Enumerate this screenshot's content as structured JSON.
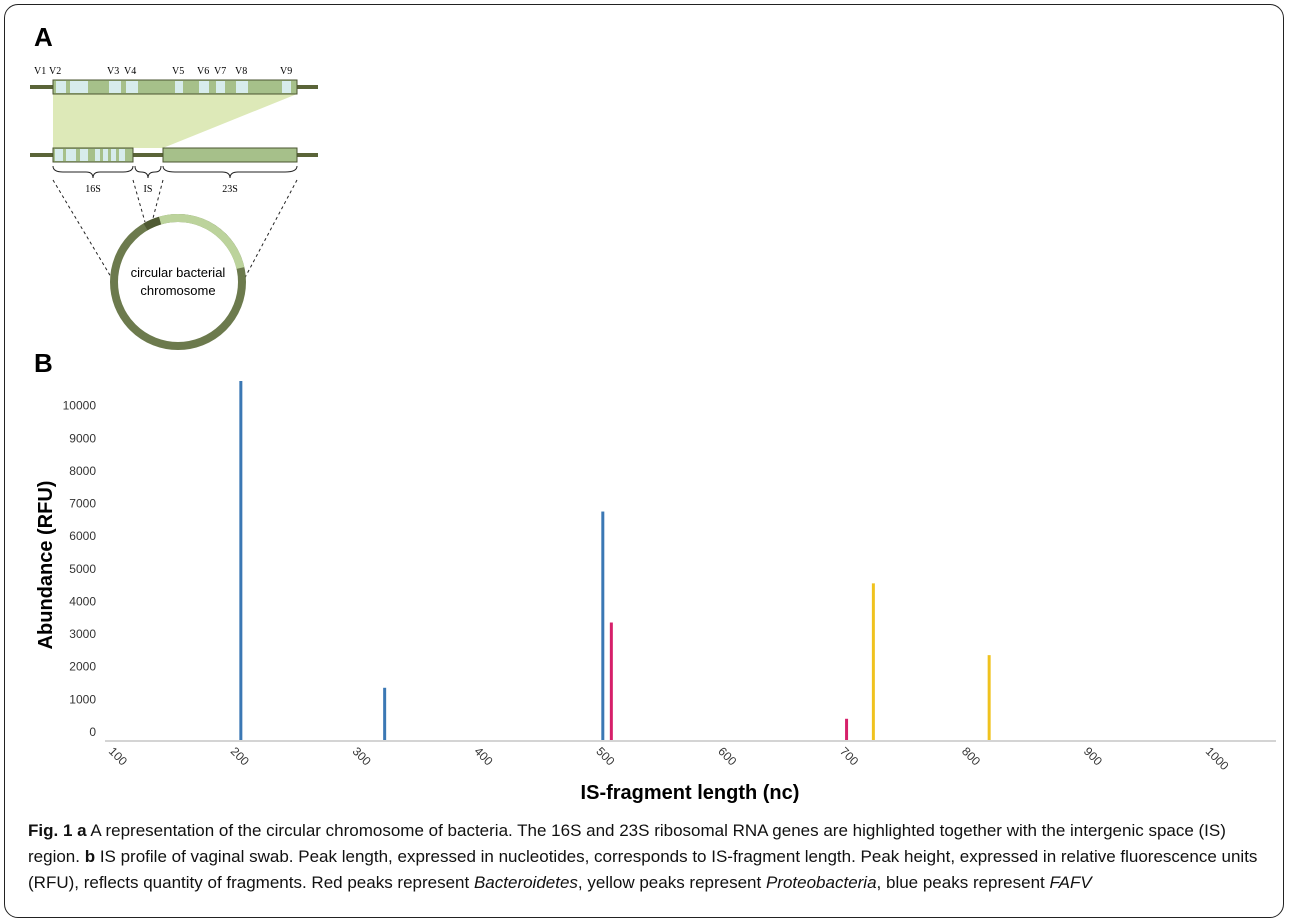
{
  "panel_a": {
    "label": "A",
    "region_labels": [
      "V1",
      "V2",
      "V3",
      "V4",
      "V5",
      "V6",
      "V7",
      "V8",
      "V9"
    ],
    "gene_labels": [
      "16S",
      "IS",
      "23S"
    ],
    "chromosome_label": [
      "circular bacterial",
      "chromosome"
    ]
  },
  "chart_data": {
    "type": "bar",
    "panel_label": "B",
    "xlabel": "IS-fragment length (nc)",
    "ylabel": "Abundance (RFU)",
    "series": [
      {
        "color": "#3b78b4",
        "x": [
          209,
          327,
          506
        ],
        "values": [
          11000,
          1600,
          7000
        ]
      },
      {
        "color": "#d6206a",
        "x": [
          513,
          706
        ],
        "values": [
          3600,
          650
        ]
      },
      {
        "color": "#f0c21e",
        "x": [
          728,
          823
        ],
        "values": [
          4800,
          2600
        ]
      }
    ],
    "xlim": [
      100,
      1060
    ],
    "ylim": [
      0,
      11000
    ],
    "xticks": [
      100,
      200,
      300,
      400,
      500,
      600,
      700,
      800,
      900,
      1000
    ],
    "yticks": [
      0,
      1000,
      2000,
      3000,
      4000,
      5000,
      6000,
      7000,
      8000,
      9000,
      10000
    ]
  },
  "caption": [
    {
      "text": "Fig. 1 a",
      "style": "bold"
    },
    {
      "text": " A representation of the circular chromosome of bacteria. The 16S and 23S ribosomal RNA genes are highlighted together with the intergenic space (IS) region. ",
      "style": "normal"
    },
    {
      "text": "b",
      "style": "bold"
    },
    {
      "text": " IS profile of vaginal swab. Peak length, expressed in nucleotides, corresponds to IS-fragment length. Peak height, expressed in relative fluorescence units (RFU), reflects quantity of fragments. Red peaks represent ",
      "style": "normal"
    },
    {
      "text": "Bacteroidetes",
      "style": "italic"
    },
    {
      "text": ", yellow peaks represent ",
      "style": "normal"
    },
    {
      "text": "Proteobacteria",
      "style": "italic"
    },
    {
      "text": ", blue peaks represent ",
      "style": "normal"
    },
    {
      "text": "FAFV",
      "style": "italic"
    }
  ]
}
